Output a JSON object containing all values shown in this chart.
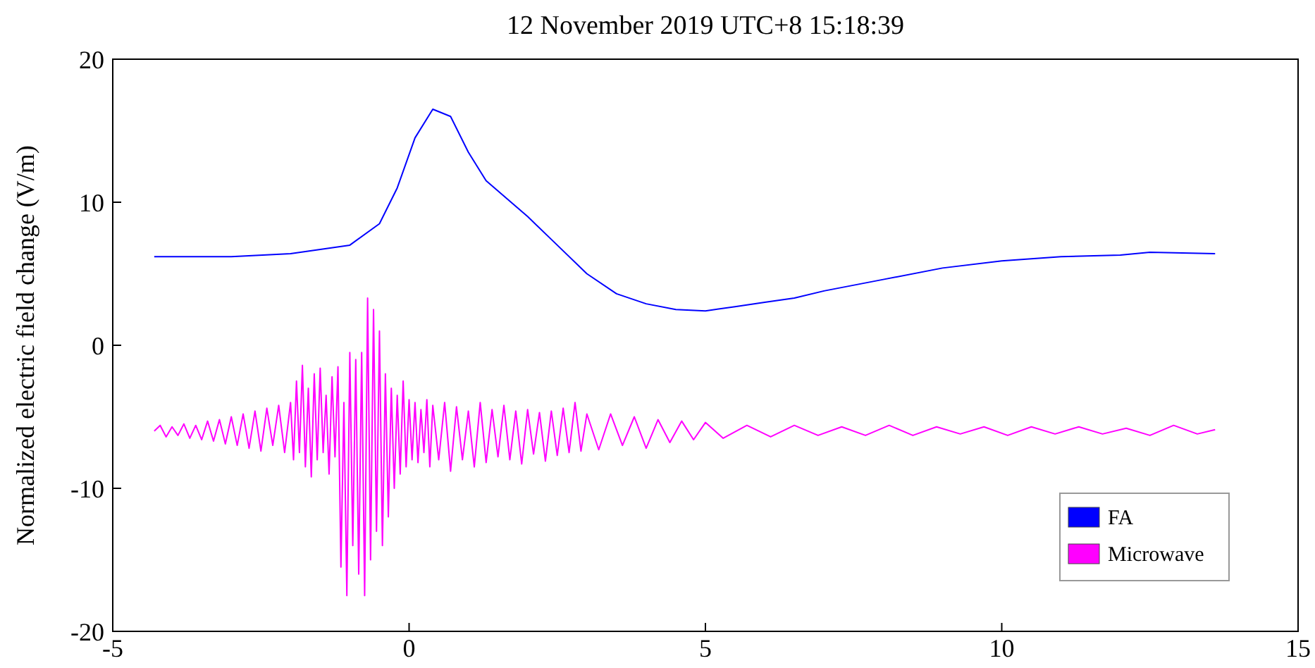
{
  "chart_data": {
    "type": "line",
    "title": "12 November 2019 UTC+8 15:18:39",
    "ylabel": "Normalized electric field change (V/m)",
    "xlim": [
      -5,
      15
    ],
    "xticks": [
      -5,
      0,
      5,
      10,
      15
    ],
    "ylim": [
      -20,
      20
    ],
    "yticks": [
      -20,
      -10,
      0,
      10,
      20
    ],
    "grid": false,
    "legend": "bottom right",
    "marker": "none",
    "line_style": "solid",
    "series": [
      {
        "name": "FA",
        "color": "#0000ff",
        "x": [
          -4.3,
          -3,
          -2,
          -1,
          -0.5,
          -0.2,
          0.1,
          0.4,
          0.7,
          1,
          1.3,
          2,
          2.5,
          3,
          3.5,
          4,
          4.5,
          5,
          5.5,
          6,
          6.5,
          7,
          8,
          9,
          10,
          11,
          12,
          12.5,
          13.6
        ],
        "values": [
          6.2,
          6.2,
          6.4,
          7,
          8.5,
          11,
          14.5,
          16.5,
          16,
          13.5,
          11.5,
          9,
          7,
          5,
          3.6,
          2.9,
          2.5,
          2.4,
          2.7,
          3,
          3.3,
          3.8,
          4.6,
          5.4,
          5.9,
          6.2,
          6.3,
          6.5,
          6.4
        ]
      },
      {
        "name": "Microwave",
        "color": "#ff00ff",
        "x": [
          -4.3,
          -4.2,
          -4.1,
          -4,
          -3.9,
          -3.8,
          -3.7,
          -3.6,
          -3.5,
          -3.4,
          -3.3,
          -3.2,
          -3.1,
          -3,
          -2.9,
          -2.8,
          -2.7,
          -2.6,
          -2.5,
          -2.4,
          -2.3,
          -2.2,
          -2.1,
          -2,
          -1.95,
          -1.9,
          -1.85,
          -1.8,
          -1.75,
          -1.7,
          -1.65,
          -1.6,
          -1.55,
          -1.5,
          -1.45,
          -1.4,
          -1.35,
          -1.3,
          -1.25,
          -1.2,
          -1.15,
          -1.1,
          -1.05,
          -1,
          -0.95,
          -0.9,
          -0.85,
          -0.8,
          -0.75,
          -0.7,
          -0.65,
          -0.6,
          -0.55,
          -0.5,
          -0.45,
          -0.4,
          -0.35,
          -0.3,
          -0.25,
          -0.2,
          -0.15,
          -0.1,
          -0.05,
          0,
          0.05,
          0.1,
          0.15,
          0.2,
          0.25,
          0.3,
          0.35,
          0.4,
          0.5,
          0.6,
          0.7,
          0.8,
          0.9,
          1,
          1.1,
          1.2,
          1.3,
          1.4,
          1.5,
          1.6,
          1.7,
          1.8,
          1.9,
          2,
          2.1,
          2.2,
          2.3,
          2.4,
          2.5,
          2.6,
          2.7,
          2.8,
          2.9,
          3,
          3.2,
          3.4,
          3.6,
          3.8,
          4,
          4.2,
          4.4,
          4.6,
          4.8,
          5,
          5.3,
          5.7,
          6.1,
          6.5,
          6.9,
          7.3,
          7.7,
          8.1,
          8.5,
          8.9,
          9.3,
          9.7,
          10.1,
          10.5,
          10.9,
          11.3,
          11.7,
          12.1,
          12.5,
          12.9,
          13.3,
          13.6
        ],
        "values": [
          -6,
          -5.6,
          -6.4,
          -5.7,
          -6.3,
          -5.5,
          -6.5,
          -5.6,
          -6.6,
          -5.3,
          -6.7,
          -5.2,
          -6.9,
          -5,
          -7,
          -4.8,
          -7.2,
          -4.6,
          -7.4,
          -4.4,
          -7,
          -4.2,
          -7.5,
          -4,
          -8,
          -2.5,
          -7.5,
          -1.4,
          -8.5,
          -3,
          -9.2,
          -2,
          -8,
          -1.6,
          -7.5,
          -3.5,
          -9,
          -2.2,
          -7.8,
          -1.5,
          -15.5,
          -4,
          -17.5,
          -0.5,
          -14,
          -1,
          -16,
          -0.5,
          -17.5,
          3.3,
          -15,
          2.5,
          -13,
          1,
          -14,
          -2,
          -12,
          -3,
          -10,
          -3.5,
          -9,
          -2.5,
          -8.5,
          -3.8,
          -8,
          -4,
          -8.2,
          -4.5,
          -7.5,
          -3.8,
          -8.5,
          -4.2,
          -8,
          -4,
          -8.8,
          -4.3,
          -8,
          -4.6,
          -8.5,
          -4,
          -8.2,
          -4.5,
          -7.8,
          -4.2,
          -8,
          -4.6,
          -8.3,
          -4.5,
          -7.6,
          -4.7,
          -8.1,
          -4.6,
          -7.7,
          -4.4,
          -7.5,
          -4,
          -7.4,
          -4.8,
          -7.3,
          -4.8,
          -7,
          -5,
          -7.2,
          -5.2,
          -6.8,
          -5.3,
          -6.6,
          -5.4,
          -6.5,
          -5.6,
          -6.4,
          -5.6,
          -6.3,
          -5.7,
          -6.3,
          -5.6,
          -6.3,
          -5.7,
          -6.2,
          -5.7,
          -6.3,
          -5.7,
          -6.2,
          -5.7,
          -6.2,
          -5.8,
          -6.3,
          -5.6,
          -6.2,
          -5.9
        ]
      }
    ]
  }
}
